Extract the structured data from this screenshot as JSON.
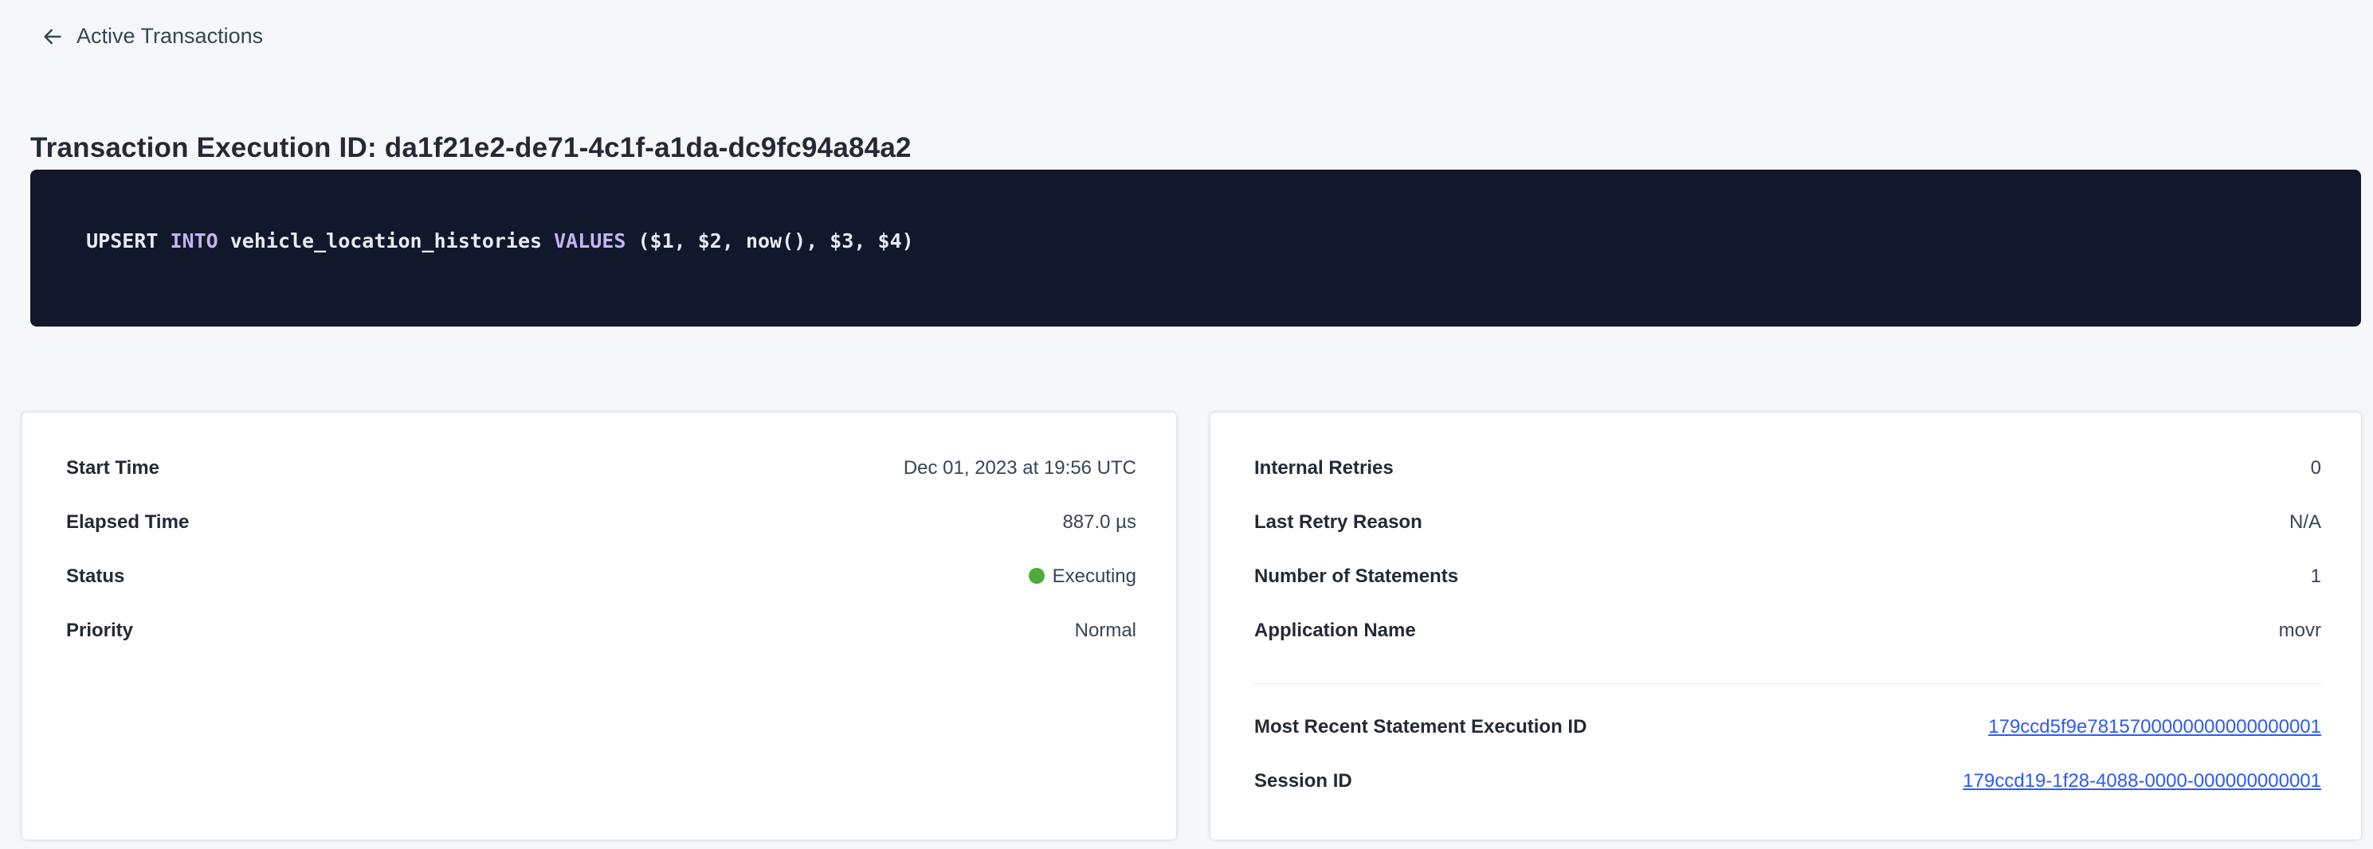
{
  "colors": {
    "page_background": "#f5f7fa",
    "card_background": "#ffffff",
    "text_dark": "#242a35",
    "text_value": "#394455",
    "link_blue": "#2d5af5",
    "status_executing_dot_green": "#50aa3c",
    "code_background": "#12182b",
    "code_text": "#e7eaf2",
    "code_keyword_purple": "#c5b3f0"
  },
  "header": {
    "back_label": "Active Transactions",
    "title": "Transaction Execution ID: da1f21e2-de71-4c1f-a1da-dc9fc94a84a2"
  },
  "sql": {
    "statement": "UPSERT INTO vehicle_location_histories VALUES ($1, $2, now(), $3, $4)",
    "tokens": [
      {
        "text": "UPSERT ",
        "type": "plain"
      },
      {
        "text": "INTO",
        "type": "keyword"
      },
      {
        "text": " vehicle_location_histories ",
        "type": "plain"
      },
      {
        "text": "VALUES",
        "type": "keyword"
      },
      {
        "text": " ($1, $2, now(), $3, $4)",
        "type": "plain"
      }
    ]
  },
  "details_left": {
    "rows": [
      {
        "label": "Start Time",
        "value": "Dec 01, 2023 at 19:56 UTC"
      },
      {
        "label": "Elapsed Time",
        "value": "887.0 µs"
      },
      {
        "label": "Status",
        "value": "Executing"
      },
      {
        "label": "Priority",
        "value": "Normal"
      }
    ]
  },
  "details_right": {
    "rows": [
      {
        "label": "Internal Retries",
        "value": "0"
      },
      {
        "label": "Last Retry Reason",
        "value": "N/A"
      },
      {
        "label": "Number of Statements",
        "value": "1"
      },
      {
        "label": "Application Name",
        "value": "movr"
      }
    ],
    "links": [
      {
        "label": "Most Recent Statement Execution ID",
        "value": "179ccd5f9e7815700000000000000001"
      },
      {
        "label": "Session ID",
        "value": "179ccd19-1f28-4088-0000-000000000001"
      }
    ]
  }
}
